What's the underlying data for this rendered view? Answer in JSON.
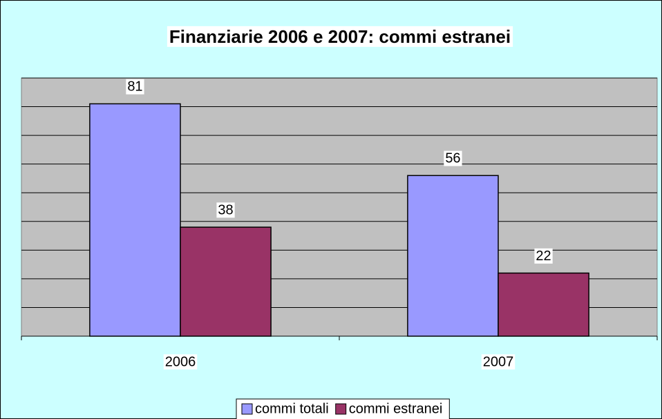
{
  "chart_data": {
    "type": "bar",
    "title": "Finanziarie 2006 e 2007: commi estranei",
    "categories": [
      "2006",
      "2007"
    ],
    "series": [
      {
        "name": "commi totali",
        "color": "#9999ff",
        "values": [
          81,
          56
        ]
      },
      {
        "name": "commi estranei",
        "color": "#993366",
        "values": [
          38,
          22
        ]
      }
    ],
    "ylim": [
      0,
      90
    ],
    "yticks": [
      0,
      10,
      20,
      30,
      40,
      50,
      60,
      70,
      80,
      90
    ],
    "grid": true,
    "legend": "bottom"
  }
}
